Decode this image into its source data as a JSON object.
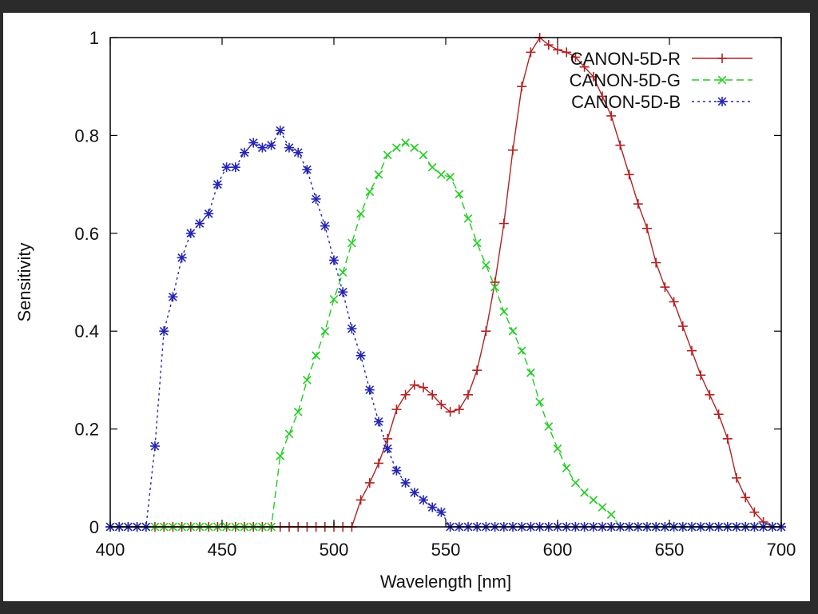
{
  "chart_data": {
    "type": "line",
    "xlabel": "Wavelength [nm]",
    "ylabel": "Sensitivity",
    "xlim": [
      400,
      700
    ],
    "ylim": [
      0,
      1
    ],
    "x_ticks": [
      "400",
      "450",
      "500",
      "550",
      "600",
      "650",
      "700"
    ],
    "y_ticks": [
      "0",
      "0.2",
      "0.4",
      "0.6",
      "0.8",
      "1"
    ],
    "legend_position": "top-right",
    "grid": false,
    "series": [
      {
        "name": "CANON-5D-R",
        "color": "#b22222",
        "marker": "plus",
        "dash": "solid",
        "points": [
          [
            400,
            0
          ],
          [
            404,
            0
          ],
          [
            408,
            0
          ],
          [
            412,
            0
          ],
          [
            416,
            0
          ],
          [
            420,
            0
          ],
          [
            424,
            0
          ],
          [
            428,
            0
          ],
          [
            432,
            0
          ],
          [
            436,
            0
          ],
          [
            440,
            0
          ],
          [
            444,
            0
          ],
          [
            448,
            0
          ],
          [
            452,
            0
          ],
          [
            456,
            0
          ],
          [
            460,
            0
          ],
          [
            464,
            0
          ],
          [
            468,
            0
          ],
          [
            472,
            0
          ],
          [
            476,
            0
          ],
          [
            480,
            0
          ],
          [
            484,
            0
          ],
          [
            488,
            0
          ],
          [
            492,
            0
          ],
          [
            496,
            0
          ],
          [
            500,
            0
          ],
          [
            504,
            0
          ],
          [
            508,
            0
          ],
          [
            512,
            0.055
          ],
          [
            516,
            0.09
          ],
          [
            520,
            0.13
          ],
          [
            524,
            0.18
          ],
          [
            528,
            0.24
          ],
          [
            532,
            0.27
          ],
          [
            536,
            0.29
          ],
          [
            540,
            0.285
          ],
          [
            544,
            0.27
          ],
          [
            548,
            0.25
          ],
          [
            552,
            0.235
          ],
          [
            556,
            0.24
          ],
          [
            560,
            0.27
          ],
          [
            564,
            0.32
          ],
          [
            568,
            0.4
          ],
          [
            572,
            0.5
          ],
          [
            576,
            0.62
          ],
          [
            580,
            0.77
          ],
          [
            584,
            0.9
          ],
          [
            588,
            0.97
          ],
          [
            592,
            1.0
          ],
          [
            596,
            0.985
          ],
          [
            600,
            0.975
          ],
          [
            604,
            0.97
          ],
          [
            608,
            0.96
          ],
          [
            612,
            0.94
          ],
          [
            616,
            0.92
          ],
          [
            620,
            0.88
          ],
          [
            624,
            0.84
          ],
          [
            628,
            0.78
          ],
          [
            632,
            0.72
          ],
          [
            636,
            0.66
          ],
          [
            640,
            0.61
          ],
          [
            644,
            0.54
          ],
          [
            648,
            0.49
          ],
          [
            652,
            0.46
          ],
          [
            656,
            0.41
          ],
          [
            660,
            0.36
          ],
          [
            664,
            0.31
          ],
          [
            668,
            0.27
          ],
          [
            672,
            0.23
          ],
          [
            676,
            0.18
          ],
          [
            680,
            0.1
          ],
          [
            684,
            0.06
          ],
          [
            688,
            0.03
          ],
          [
            692,
            0.01
          ],
          [
            696,
            0
          ],
          [
            700,
            0
          ]
        ]
      },
      {
        "name": "CANON-5D-G",
        "color": "#22cc22",
        "marker": "x",
        "dash": "dashed",
        "points": [
          [
            400,
            0
          ],
          [
            404,
            0
          ],
          [
            408,
            0
          ],
          [
            412,
            0
          ],
          [
            416,
            0
          ],
          [
            420,
            0
          ],
          [
            424,
            0
          ],
          [
            428,
            0
          ],
          [
            432,
            0
          ],
          [
            436,
            0
          ],
          [
            440,
            0
          ],
          [
            444,
            0
          ],
          [
            448,
            0
          ],
          [
            452,
            0
          ],
          [
            456,
            0
          ],
          [
            460,
            0
          ],
          [
            464,
            0
          ],
          [
            468,
            0
          ],
          [
            472,
            0
          ],
          [
            476,
            0.145
          ],
          [
            480,
            0.19
          ],
          [
            484,
            0.235
          ],
          [
            488,
            0.3
          ],
          [
            492,
            0.35
          ],
          [
            496,
            0.4
          ],
          [
            500,
            0.465
          ],
          [
            504,
            0.52
          ],
          [
            508,
            0.58
          ],
          [
            512,
            0.64
          ],
          [
            516,
            0.685
          ],
          [
            520,
            0.72
          ],
          [
            524,
            0.76
          ],
          [
            528,
            0.775
          ],
          [
            532,
            0.785
          ],
          [
            536,
            0.775
          ],
          [
            540,
            0.76
          ],
          [
            544,
            0.735
          ],
          [
            548,
            0.72
          ],
          [
            552,
            0.715
          ],
          [
            556,
            0.68
          ],
          [
            560,
            0.63
          ],
          [
            564,
            0.58
          ],
          [
            568,
            0.535
          ],
          [
            572,
            0.49
          ],
          [
            576,
            0.44
          ],
          [
            580,
            0.4
          ],
          [
            584,
            0.36
          ],
          [
            588,
            0.315
          ],
          [
            592,
            0.255
          ],
          [
            596,
            0.205
          ],
          [
            600,
            0.16
          ],
          [
            604,
            0.12
          ],
          [
            608,
            0.09
          ],
          [
            612,
            0.07
          ],
          [
            616,
            0.055
          ],
          [
            620,
            0.04
          ],
          [
            624,
            0.025
          ],
          [
            628,
            0
          ],
          [
            632,
            0
          ],
          [
            636,
            0
          ],
          [
            640,
            0
          ],
          [
            644,
            0
          ],
          [
            648,
            0
          ],
          [
            652,
            0
          ],
          [
            656,
            0
          ],
          [
            660,
            0
          ],
          [
            664,
            0
          ],
          [
            668,
            0
          ],
          [
            672,
            0
          ],
          [
            676,
            0
          ],
          [
            680,
            0
          ],
          [
            684,
            0
          ],
          [
            688,
            0
          ],
          [
            692,
            0
          ],
          [
            696,
            0
          ],
          [
            700,
            0
          ]
        ]
      },
      {
        "name": "CANON-5D-B",
        "color": "#2424b4",
        "marker": "star",
        "dash": "dotted",
        "points": [
          [
            400,
            0
          ],
          [
            404,
            0
          ],
          [
            408,
            0
          ],
          [
            412,
            0
          ],
          [
            416,
            0
          ],
          [
            420,
            0.165
          ],
          [
            424,
            0.4
          ],
          [
            428,
            0.47
          ],
          [
            432,
            0.55
          ],
          [
            436,
            0.6
          ],
          [
            440,
            0.62
          ],
          [
            444,
            0.64
          ],
          [
            448,
            0.7
          ],
          [
            452,
            0.735
          ],
          [
            456,
            0.735
          ],
          [
            460,
            0.765
          ],
          [
            464,
            0.785
          ],
          [
            468,
            0.775
          ],
          [
            472,
            0.78
          ],
          [
            476,
            0.81
          ],
          [
            480,
            0.775
          ],
          [
            484,
            0.765
          ],
          [
            488,
            0.73
          ],
          [
            492,
            0.67
          ],
          [
            496,
            0.615
          ],
          [
            500,
            0.545
          ],
          [
            504,
            0.48
          ],
          [
            508,
            0.405
          ],
          [
            512,
            0.35
          ],
          [
            516,
            0.28
          ],
          [
            520,
            0.215
          ],
          [
            524,
            0.16
          ],
          [
            528,
            0.115
          ],
          [
            532,
            0.09
          ],
          [
            536,
            0.07
          ],
          [
            540,
            0.055
          ],
          [
            544,
            0.04
          ],
          [
            548,
            0.03
          ],
          [
            552,
            0
          ],
          [
            556,
            0
          ],
          [
            560,
            0
          ],
          [
            564,
            0
          ],
          [
            568,
            0
          ],
          [
            572,
            0
          ],
          [
            576,
            0
          ],
          [
            580,
            0
          ],
          [
            584,
            0
          ],
          [
            588,
            0
          ],
          [
            592,
            0
          ],
          [
            596,
            0
          ],
          [
            600,
            0
          ],
          [
            604,
            0
          ],
          [
            608,
            0
          ],
          [
            612,
            0
          ],
          [
            616,
            0
          ],
          [
            620,
            0
          ],
          [
            624,
            0
          ],
          [
            628,
            0
          ],
          [
            632,
            0
          ],
          [
            636,
            0
          ],
          [
            640,
            0
          ],
          [
            644,
            0
          ],
          [
            648,
            0
          ],
          [
            652,
            0
          ],
          [
            656,
            0
          ],
          [
            660,
            0
          ],
          [
            664,
            0
          ],
          [
            668,
            0
          ],
          [
            672,
            0
          ],
          [
            676,
            0
          ],
          [
            680,
            0
          ],
          [
            684,
            0
          ],
          [
            688,
            0
          ],
          [
            692,
            0
          ],
          [
            696,
            0
          ],
          [
            700,
            0
          ]
        ]
      }
    ]
  }
}
